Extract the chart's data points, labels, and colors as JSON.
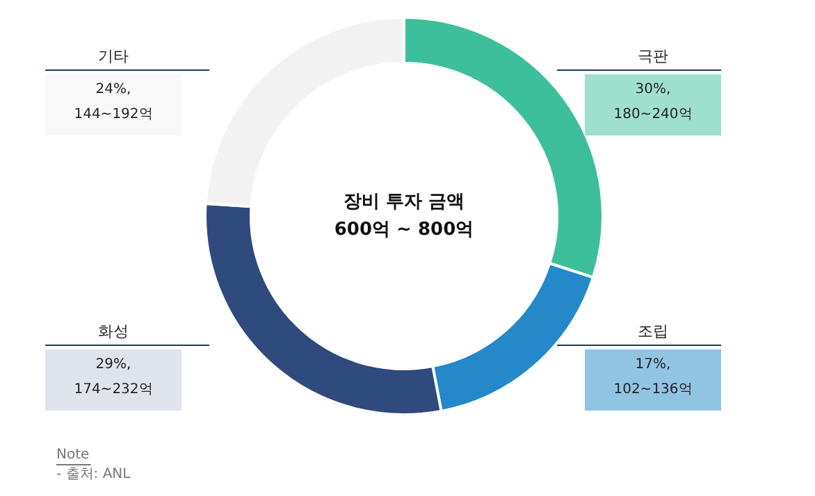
{
  "chart_data": {
    "type": "donut",
    "title": "장비 투자 금액\n600억 ~ 800억",
    "categories": [
      "극판",
      "조립",
      "화성",
      "기타"
    ],
    "values": [
      30,
      17,
      29,
      24
    ],
    "colors": [
      "#3dbf9c",
      "#2488c9",
      "#2f4a7c",
      "#f2f2f2"
    ],
    "value_labels": [
      "30%,\n180~240억",
      "17%,\n102~136억",
      "29%,\n174~232억",
      "24%,\n144~192억"
    ],
    "annotations": [
      "Note",
      "- 출처: ANL"
    ]
  }
}
